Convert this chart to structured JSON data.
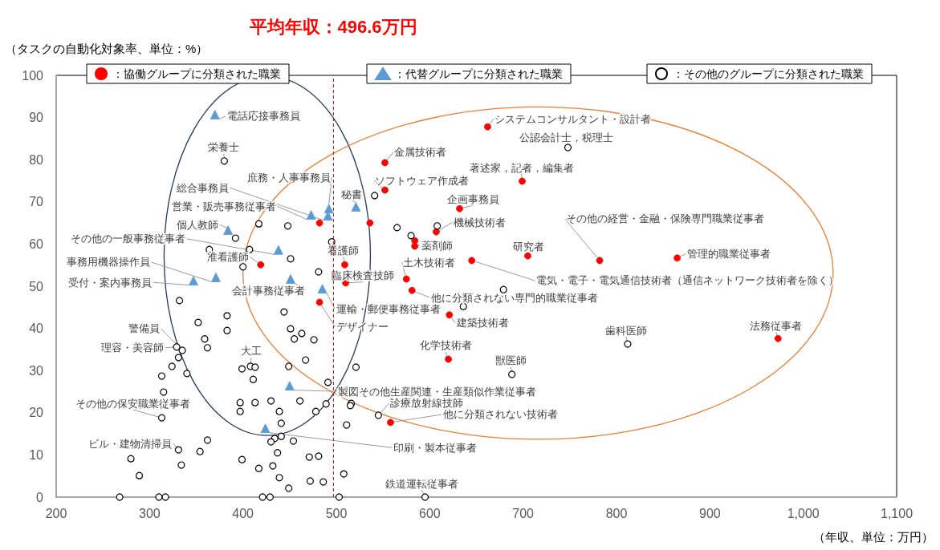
{
  "chart_data": {
    "type": "scatter",
    "xlabel": "（年収、単位：万円）",
    "ylabel": "（タスクの自動化対象率、単位：%）",
    "xlim": [
      200,
      1100
    ],
    "xticks": [
      200,
      300,
      400,
      500,
      600,
      700,
      800,
      900,
      {
        "value": 1000,
        "label": "1,000"
      },
      {
        "value": 1100,
        "label": "1,100"
      }
    ],
    "ylim": [
      0,
      100
    ],
    "yticks": [
      0,
      10,
      20,
      30,
      40,
      50,
      60,
      70,
      80,
      90,
      100
    ],
    "grid": false,
    "legend": "top",
    "series": [
      {
        "name": "：協働グループに分類された職業",
        "color": "#ff0000",
        "marker": "circle",
        "x": [
          552,
          552,
          662,
          699,
          632,
          607,
          584,
          584,
          705,
          645,
          782,
          865,
          973,
          575,
          581,
          621,
          620,
          558,
          509,
          510,
          482,
          419,
          482,
          536
        ],
        "values": [
          79.3,
          72.8,
          87.8,
          74.9,
          68.4,
          62.9,
          60.8,
          59.5,
          57.2,
          56.1,
          56.1,
          56.7,
          37.6,
          51.7,
          49.0,
          43.2,
          32.7,
          17.7,
          55.1,
          50.8,
          46.2,
          55.1,
          65.0,
          65.0
        ]
      },
      {
        "name": "：代替グループに分類された職業",
        "color": "#5b9bd5",
        "marker": "triangle",
        "x": [
          370,
          384,
          492,
          491,
          473,
          521,
          438,
          371,
          347,
          451,
          485,
          450,
          424
        ],
        "values": [
          90.7,
          63.3,
          68.4,
          66.7,
          66.9,
          68.8,
          58.6,
          52.1,
          51.3,
          51.7,
          49.4,
          26.4,
          16.3
        ]
      },
      {
        "name": "：その他のグループに分類された職業",
        "color": "#ffffff",
        "marker": "circle",
        "x": [
          380,
          417,
          448,
          392,
          495,
          364,
          407,
          451,
          400,
          481,
          332,
          444,
          383,
          352,
          383,
          451,
          463,
          455,
          476,
          359,
          362,
          329,
          335,
          331,
          467,
          324,
          399,
          408,
          413,
          449,
          340,
          313,
          411,
          491,
          315,
          461,
          430,
          413,
          397,
          489,
          516,
          515,
          397,
          439,
          478,
          313,
          441,
          511,
          441,
          434,
          430,
          362,
          454,
          331,
          354,
          437,
          280,
          334,
          399,
          471,
          481,
          432,
          417,
          289,
          508,
          439,
          472,
          486,
          449,
          268,
          310,
          317,
          421,
          429,
          503,
          595,
          636,
          521,
          688,
          545,
          541,
          748,
          565,
          580,
          608,
          679,
          812
        ],
        "values": [
          79.7,
          64.8,
          64.3,
          61.4,
          60.5,
          58.7,
          58.7,
          56.5,
          54.6,
          53.4,
          46.6,
          43.9,
          43.0,
          41.4,
          39.5,
          39.9,
          38.8,
          37.5,
          37.3,
          37.5,
          35.4,
          35.6,
          34.8,
          33.1,
          32.5,
          31.0,
          30.4,
          31.0,
          30.8,
          31.0,
          29.3,
          28.7,
          27.9,
          27.2,
          24.9,
          22.8,
          22.8,
          22.4,
          22.4,
          22.1,
          22.2,
          21.7,
          20.3,
          20.3,
          20.3,
          18.8,
          17.5,
          17.1,
          14.4,
          13.9,
          13.1,
          13.5,
          13.3,
          11.2,
          10.8,
          10.5,
          9.1,
          7.6,
          8.9,
          9.5,
          9.7,
          7.4,
          6.8,
          5.1,
          5.5,
          4.6,
          3.8,
          3.6,
          2.1,
          0,
          0,
          0,
          0,
          0,
          0,
          0,
          45.2,
          30.8,
          29.1,
          19.4,
          71.5,
          82.9,
          63.9,
          62.0,
          64.3,
          49.2,
          36.3
        ]
      }
    ],
    "ref_lines": [
      {
        "axis": "x",
        "value": 496.6,
        "label": "平均年収：496.6万円",
        "color": "#ff0000",
        "line_style": "dashed"
      }
    ],
    "annotations": [
      {
        "text": "電話応接事務員",
        "x": 370,
        "y": 90.7
      },
      {
        "text": "栄養士",
        "x": 380,
        "y": 79.7
      },
      {
        "text": "庶務・人事事務員",
        "x": 492,
        "y": 68.4
      },
      {
        "text": "総合事務員",
        "x": 491,
        "y": 66.7
      },
      {
        "text": "営業・販売事務従事者",
        "x": 473,
        "y": 66.9
      },
      {
        "text": "個人教師",
        "x": 384,
        "y": 63.3
      },
      {
        "text": "秘書",
        "x": 521,
        "y": 68.8
      },
      {
        "text": "その他の一般事務従事者",
        "x": 438,
        "y": 58.6
      },
      {
        "text": "准看護師",
        "x": 419,
        "y": 55.1
      },
      {
        "text": "看護師",
        "x": 509,
        "y": 55.1
      },
      {
        "text": "事務用機器操作員",
        "x": 371,
        "y": 52.1
      },
      {
        "text": "受付・案内事務員",
        "x": 347,
        "y": 51.3
      },
      {
        "text": "会計事務従事者",
        "x": 451,
        "y": 51.7
      },
      {
        "text": "臨床検査技師",
        "x": 510,
        "y": 50.8
      },
      {
        "text": "運輸・郵便事務従事者",
        "x": 485,
        "y": 49.4
      },
      {
        "text": "デザイナー",
        "x": 482,
        "y": 46.2
      },
      {
        "text": "警備員",
        "x": 335,
        "y": 34.8
      },
      {
        "text": "理容・美容師",
        "x": 329,
        "y": 35.6
      },
      {
        "text": "大工",
        "x": 408,
        "y": 31.0
      },
      {
        "text": "製図その他生産関連・生産類似作業従事者",
        "x": 450,
        "y": 26.4
      },
      {
        "text": "その他の保安職業従事者",
        "x": 313,
        "y": 18.8
      },
      {
        "text": "印刷・製本従事者",
        "x": 424,
        "y": 16.3
      },
      {
        "text": "ビル・建物清掃員",
        "x": 331,
        "y": 11.2
      },
      {
        "text": "鉄道運転従事者",
        "x": 595,
        "y": 0
      },
      {
        "text": "診療放射線技師",
        "x": 545,
        "y": 19.4
      },
      {
        "text": "他に分類されない技術者",
        "x": 558,
        "y": 17.7
      },
      {
        "text": "獣医師",
        "x": 688,
        "y": 29.1
      },
      {
        "text": "化学技術者",
        "x": 620,
        "y": 32.7
      },
      {
        "text": "建築技術者",
        "x": 621,
        "y": 43.2
      },
      {
        "text": "他に分類されない専門的職業従事者",
        "x": 581,
        "y": 49.0
      },
      {
        "text": "土木技術者",
        "x": 575,
        "y": 51.7
      },
      {
        "text": "電気・電子・電気通信技術者（通信ネットワーク技術者を除く）",
        "x": 645,
        "y": 56.1
      },
      {
        "text": "薬剤師",
        "x": 584,
        "y": 59.5
      },
      {
        "text": "機械技術者",
        "x": 607,
        "y": 62.9
      },
      {
        "text": "企画事務員",
        "x": 632,
        "y": 68.4
      },
      {
        "text": "ソフトウェア作成者",
        "x": 552,
        "y": 72.8
      },
      {
        "text": "金属技術者",
        "x": 552,
        "y": 79.3
      },
      {
        "text": "システムコンサルタント・設計者",
        "x": 662,
        "y": 87.8
      },
      {
        "text": "公認会計士，税理士",
        "x": 748,
        "y": 82.9
      },
      {
        "text": "著述家，記者，編集者",
        "x": 699,
        "y": 74.9
      },
      {
        "text": "研究者",
        "x": 705,
        "y": 57.2
      },
      {
        "text": "その他の経営・金融・保険専門職業従事者",
        "x": 782,
        "y": 56.1
      },
      {
        "text": "管理的職業従事者",
        "x": 865,
        "y": 56.7
      },
      {
        "text": "歯科医師",
        "x": 812,
        "y": 36.3
      },
      {
        "text": "法務従事者",
        "x": 973,
        "y": 37.6
      }
    ]
  }
}
